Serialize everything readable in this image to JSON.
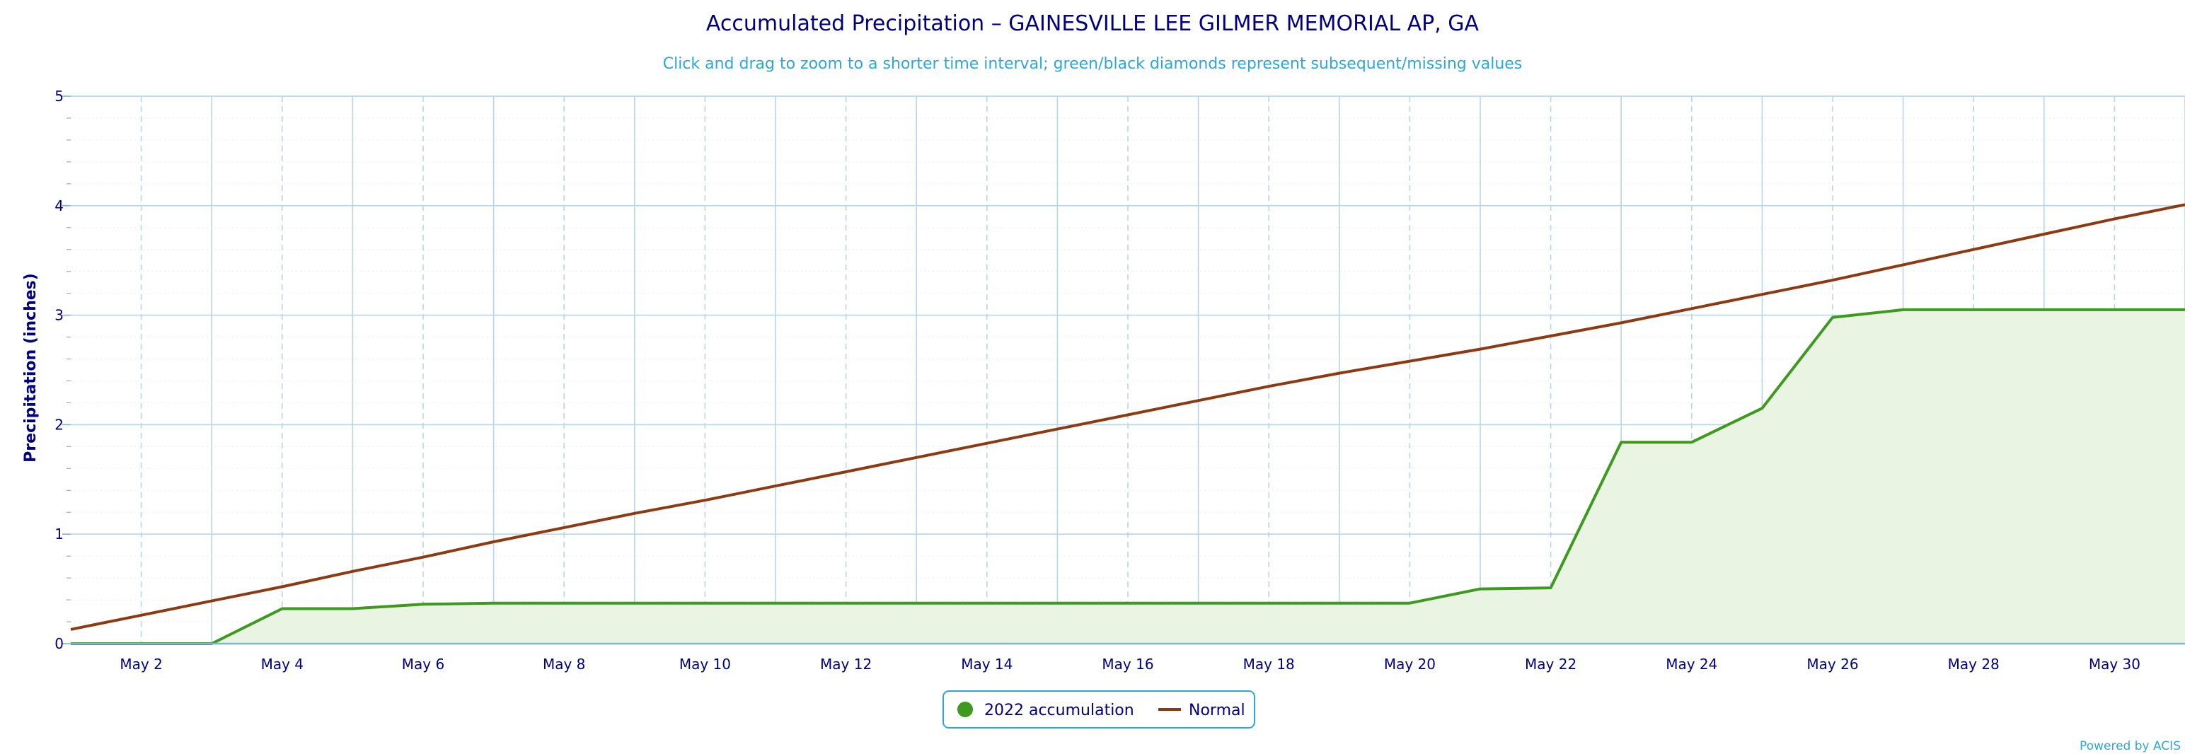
{
  "chart_data": {
    "type": "area",
    "title": "Accumulated Precipitation – GAINESVILLE LEE GILMER MEMORIAL AP, GA",
    "subtitle": "Click and drag to zoom to a shorter time interval; green/black diamonds represent subsequent/missing values",
    "ylabel": "Precipitation (inches)",
    "xlabel": "",
    "x": [
      "May 1",
      "May 2",
      "May 3",
      "May 4",
      "May 5",
      "May 6",
      "May 7",
      "May 8",
      "May 9",
      "May 10",
      "May 11",
      "May 12",
      "May 13",
      "May 14",
      "May 15",
      "May 16",
      "May 17",
      "May 18",
      "May 19",
      "May 20",
      "May 21",
      "May 22",
      "May 23",
      "May 24",
      "May 25",
      "May 26",
      "May 27",
      "May 28",
      "May 29",
      "May 30",
      "May 31"
    ],
    "x_tick_labels": [
      "May 2",
      "May 4",
      "May 6",
      "May 8",
      "May 10",
      "May 12",
      "May 14",
      "May 16",
      "May 18",
      "May 20",
      "May 22",
      "May 24",
      "May 26",
      "May 28",
      "May 30"
    ],
    "ylim": [
      0,
      5
    ],
    "y_ticks": [
      0,
      1,
      2,
      3,
      4,
      5
    ],
    "grid": true,
    "legend": "bottom-center",
    "series": [
      {
        "name": "2022 accumulation",
        "kind": "area",
        "color": "#3d9a1e",
        "fill": "#e9f4e3",
        "values": [
          0.0,
          0.0,
          0.0,
          0.32,
          0.32,
          0.36,
          0.37,
          0.37,
          0.37,
          0.37,
          0.37,
          0.37,
          0.37,
          0.37,
          0.37,
          0.37,
          0.37,
          0.37,
          0.37,
          0.37,
          0.5,
          0.51,
          1.84,
          1.84,
          2.15,
          2.98,
          3.05,
          3.05,
          3.05,
          3.05,
          3.05
        ]
      },
      {
        "name": "Normal",
        "kind": "line",
        "color": "#8b3a12",
        "values": [
          0.13,
          0.26,
          0.39,
          0.52,
          0.66,
          0.79,
          0.93,
          1.06,
          1.19,
          1.31,
          1.44,
          1.57,
          1.7,
          1.83,
          1.96,
          2.09,
          2.22,
          2.35,
          2.47,
          2.58,
          2.69,
          2.81,
          2.93,
          3.06,
          3.19,
          3.32,
          3.46,
          3.6,
          3.74,
          3.88,
          4.01
        ]
      }
    ],
    "credit": "Powered by ACIS"
  },
  "colors": {
    "title": "#000080",
    "subtitle": "#2fa7d6",
    "grid": "#b8d6ea",
    "axis": "#7fb3d5"
  }
}
